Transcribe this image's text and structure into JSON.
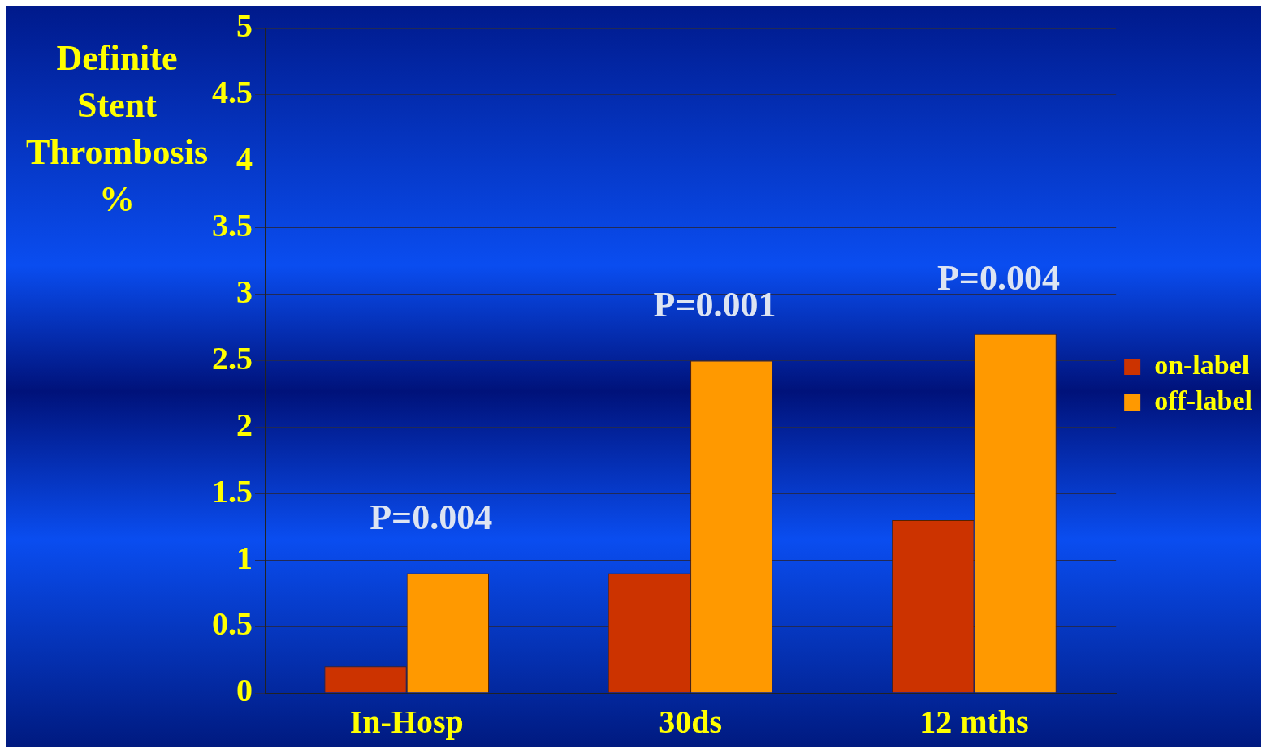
{
  "chart_data": {
    "type": "bar",
    "ylabel": "Definite Stent Thrombosis %",
    "categories": [
      "In-Hosp",
      "30ds",
      "12 mths"
    ],
    "series": [
      {
        "name": "on-label",
        "color": "#cc3300",
        "values": [
          0.2,
          0.9,
          1.3
        ]
      },
      {
        "name": "off-label",
        "color": "#ff9900",
        "values": [
          0.9,
          2.5,
          2.7
        ]
      }
    ],
    "ylim": [
      0,
      5
    ],
    "yticks": [
      0,
      0.5,
      1,
      1.5,
      2,
      2.5,
      3,
      3.5,
      4,
      4.5,
      5
    ],
    "grid": "y",
    "legend": "right",
    "annotations": [
      "P=0.004",
      "P=0.001",
      "P=0.004"
    ]
  }
}
